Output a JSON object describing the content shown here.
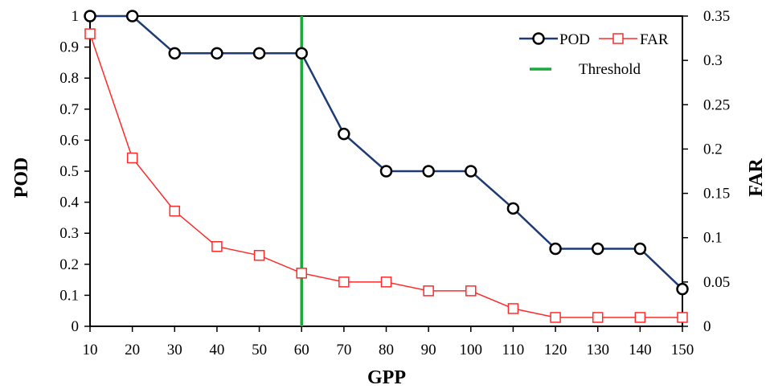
{
  "chart_data": {
    "type": "line",
    "x": [
      10,
      20,
      30,
      40,
      50,
      60,
      70,
      80,
      90,
      100,
      110,
      120,
      130,
      140,
      150
    ],
    "xlabel": "GPP",
    "ylabel_left": "POD",
    "ylabel_right": "FAR",
    "xlim": [
      10,
      150
    ],
    "ylim_left": [
      0,
      1
    ],
    "ylim_right": [
      0,
      0.35
    ],
    "x_ticks": [
      "10",
      "20",
      "30",
      "40",
      "50",
      "60",
      "70",
      "80",
      "90",
      "100",
      "110",
      "120",
      "130",
      "140",
      "150"
    ],
    "y_left_ticks": [
      "0",
      "0.1",
      "0.2",
      "0.3",
      "0.4",
      "0.5",
      "0.6",
      "0.7",
      "0.8",
      "0.9",
      "1"
    ],
    "y_right_ticks": [
      "0",
      "0.05",
      "0.1",
      "0.15",
      "0.2",
      "0.25",
      "0.3",
      "0.35"
    ],
    "series": [
      {
        "name": "POD",
        "axis": "left",
        "color": "#1f3b73",
        "marker": "circle",
        "values": [
          1,
          1,
          0.88,
          0.88,
          0.88,
          0.88,
          0.62,
          0.5,
          0.5,
          0.5,
          0.38,
          0.25,
          0.25,
          0.25,
          0.12
        ]
      },
      {
        "name": "FAR",
        "axis": "right",
        "color": "#ff2a2a",
        "marker": "square",
        "values": [
          0.33,
          0.19,
          0.13,
          0.09,
          0.08,
          0.06,
          0.05,
          0.05,
          0.04,
          0.04,
          0.02,
          0.01,
          0.01,
          0.01,
          0.01
        ]
      }
    ],
    "threshold": {
      "name": "Threshold",
      "x": 60,
      "color": "#1aaa3a"
    },
    "legend_position": "top-right",
    "grid": false
  }
}
